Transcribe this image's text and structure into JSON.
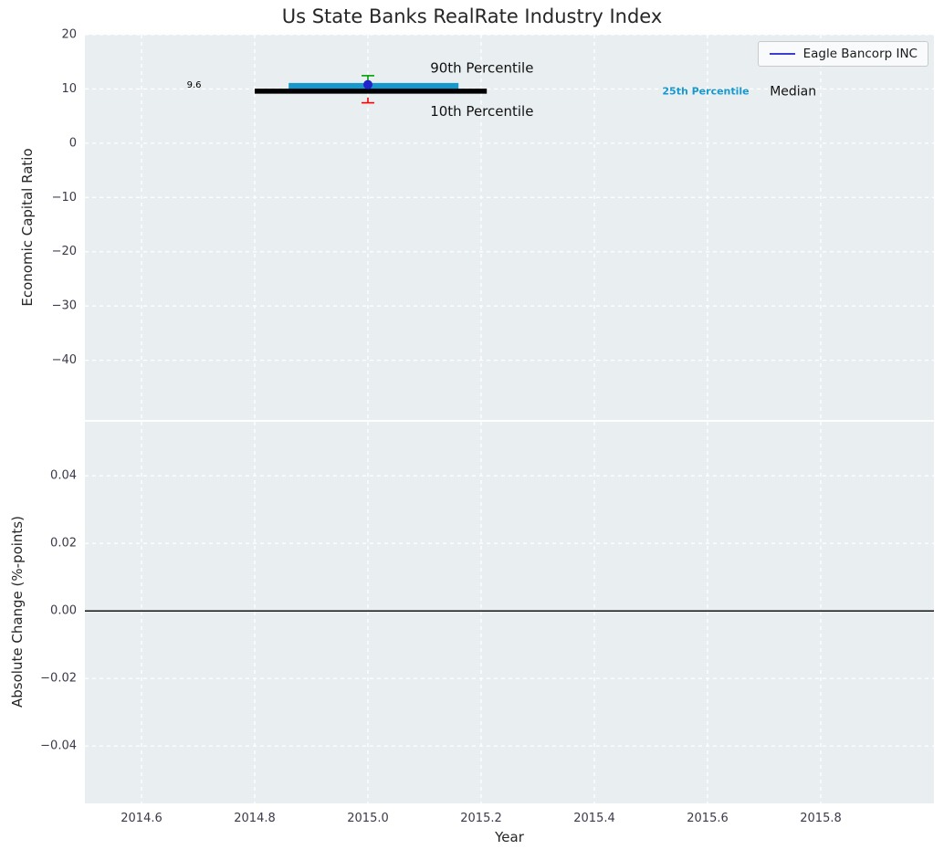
{
  "figure": {
    "title": "Us State Banks RealRate Industry Index"
  },
  "legend": {
    "label": "Eagle Bancorp INC",
    "line_color": "#2222cc"
  },
  "style": {
    "figure_bg": "#ffffff",
    "panel_bg": "#e9eef0",
    "grid_color": "#ffffff",
    "tick_color": "#3a3a4a",
    "title_color": "#262626"
  },
  "chart_data": [
    {
      "type": "scatter",
      "xlabel": "",
      "ylabel": "Economic Capital Ratio",
      "xlim": [
        2014.5,
        2016.0
      ],
      "ylim": [
        -51,
        20
      ],
      "grid": true,
      "legend_position": "upper right",
      "xticks": {
        "values": [
          2014.6,
          2014.8,
          2015.0,
          2015.2,
          2015.4,
          2015.6,
          2015.8
        ],
        "labels": [
          "2014.6",
          "2014.8",
          "2015.0",
          "2015.2",
          "2015.4",
          "2015.6",
          "2015.8"
        ]
      },
      "yticks": {
        "values": [
          20,
          10,
          0,
          -10,
          -20,
          -30,
          -40
        ],
        "labels": [
          "20",
          "10",
          "0",
          "−10",
          "−20",
          "−30",
          "−40"
        ]
      },
      "series": [
        {
          "name": "25th-75th percentile band",
          "type": "band",
          "x_from": 2014.86,
          "x_to": 2015.16,
          "y_from": 9.4,
          "y_to": 11.1,
          "color": "#1899ce"
        },
        {
          "name": "median",
          "type": "hline",
          "x_from": 2014.8,
          "x_to": 2015.21,
          "y": 9.6,
          "color": "#000000",
          "width": 5.5
        },
        {
          "name": "90th percentile errorbar",
          "type": "errorbar",
          "x": 2015.0,
          "y_from": 11.4,
          "y_to": 12.45,
          "color": "#00a000"
        },
        {
          "name": "10th percentile errorbar",
          "type": "errorbar",
          "x": 2015.0,
          "y_from": 8.4,
          "y_to": 7.45,
          "color": "#ff0000"
        },
        {
          "name": "Eagle Bancorp INC",
          "type": "marker",
          "x": 2015.0,
          "y": 10.8,
          "color": "#2222cc"
        }
      ],
      "annotations": [
        {
          "text": "9.6",
          "x": 2014.68,
          "y": 10.7,
          "size": 10,
          "color": "#000000",
          "bold": false
        },
        {
          "text": "90th Percentile",
          "x": 2015.11,
          "y": 13.9,
          "size": 15,
          "color": "#111111",
          "bold": false
        },
        {
          "text": "10th Percentile",
          "x": 2015.11,
          "y": 5.9,
          "size": 15,
          "color": "#111111",
          "bold": false
        },
        {
          "text": "25th Percentile",
          "x": 2015.52,
          "y": 9.6,
          "size": 11,
          "color": "#1899ce",
          "bold": true
        },
        {
          "text": "Median",
          "x": 2015.71,
          "y": 9.5,
          "size": 14,
          "color": "#111111",
          "bold": false
        }
      ]
    },
    {
      "type": "line",
      "xlabel": "Year",
      "ylabel": "Absolute Change (%-points)",
      "xlim": [
        2014.5,
        2016.0
      ],
      "ylim": [
        -0.057,
        0.056
      ],
      "grid": true,
      "xticks": {
        "values": [
          2014.6,
          2014.8,
          2015.0,
          2015.2,
          2015.4,
          2015.6,
          2015.8
        ],
        "labels": [
          "2014.6",
          "2014.8",
          "2015.0",
          "2015.2",
          "2015.4",
          "2015.6",
          "2015.8"
        ]
      },
      "yticks": {
        "values": [
          0.04,
          0.02,
          0,
          -0.02,
          -0.04
        ],
        "labels": [
          "0.04",
          "0.02",
          "0.00",
          "−0.02",
          "−0.04"
        ]
      },
      "zero_line": {
        "y": 0.0,
        "color": "#000000"
      },
      "series": []
    }
  ]
}
